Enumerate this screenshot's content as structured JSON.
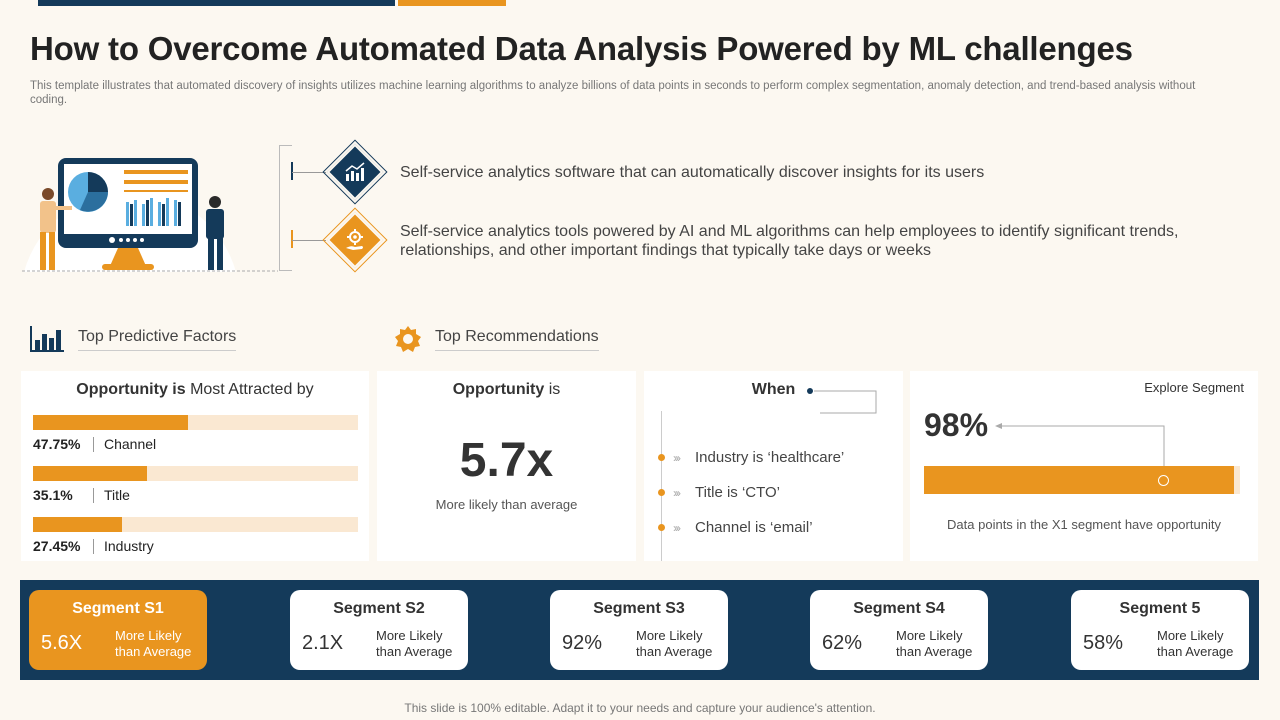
{
  "title": "How to Overcome Automated Data Analysis Powered by ML challenges",
  "subtitle": "This template illustrates that automated discovery of insights utilizes machine learning algorithms to analyze billions of data points in seconds to perform complex segmentation, anomaly detection, and trend-based analysis without coding.",
  "benefits": [
    {
      "text": "Self-service analytics software that can automatically  discover insights for its users",
      "icon": "analytics-chart-icon"
    },
    {
      "text": "Self-service analytics tools powered by AI and ML algorithms can help employees to identify significant trends, relationships, and other important findings that typically take days or weeks",
      "icon": "gear-hand-icon"
    }
  ],
  "sections": {
    "factors_label": "Top Predictive Factors",
    "recommendations_label": "Top Recommendations"
  },
  "factors_card": {
    "head_bold": "Opportunity is",
    "head_rest": " Most Attracted by",
    "items": [
      {
        "pct": "47.75%",
        "name": "Channel",
        "value": 47.75
      },
      {
        "pct": "35.1%",
        "name": "Title",
        "value": 35.1
      },
      {
        "pct": "27.45%",
        "name": "Industry",
        "value": 27.45
      }
    ]
  },
  "opportunity_card": {
    "head_bold": "Opportunity",
    "head_rest": " is",
    "value": "5.7x",
    "caption": "More likely than average"
  },
  "when_card": {
    "head": "When",
    "items": [
      "Industry is ‘healthcare’",
      "Title is ‘CTO’",
      "Channel is ‘email’"
    ]
  },
  "segment_card": {
    "explore": "Explore Segment",
    "pct": "98%",
    "value": 98,
    "caption": "Data points in the X1 segment have opportunity"
  },
  "segments": [
    {
      "title": "Segment S1",
      "value": "5.6X",
      "desc1": "More Likely",
      "desc2": "than Average",
      "active": true
    },
    {
      "title": "Segment S2",
      "value": "2.1X",
      "desc1": "More Likely",
      "desc2": "than Average",
      "active": false
    },
    {
      "title": "Segment S3",
      "value": "92%",
      "desc1": "More Likely",
      "desc2": "than Average",
      "active": false
    },
    {
      "title": "Segment S4",
      "value": "62%",
      "desc1": "More Likely",
      "desc2": "than Average",
      "active": false
    },
    {
      "title": "Segment 5",
      "value": "58%",
      "desc1": "More Likely",
      "desc2": "than Average",
      "active": false
    }
  ],
  "footer": "This slide is 100% editable. Adapt it to your needs and capture your audience's attention.",
  "colors": {
    "navy": "#143a5a",
    "orange": "#e9951f",
    "light_orange": "#fae8d2"
  }
}
